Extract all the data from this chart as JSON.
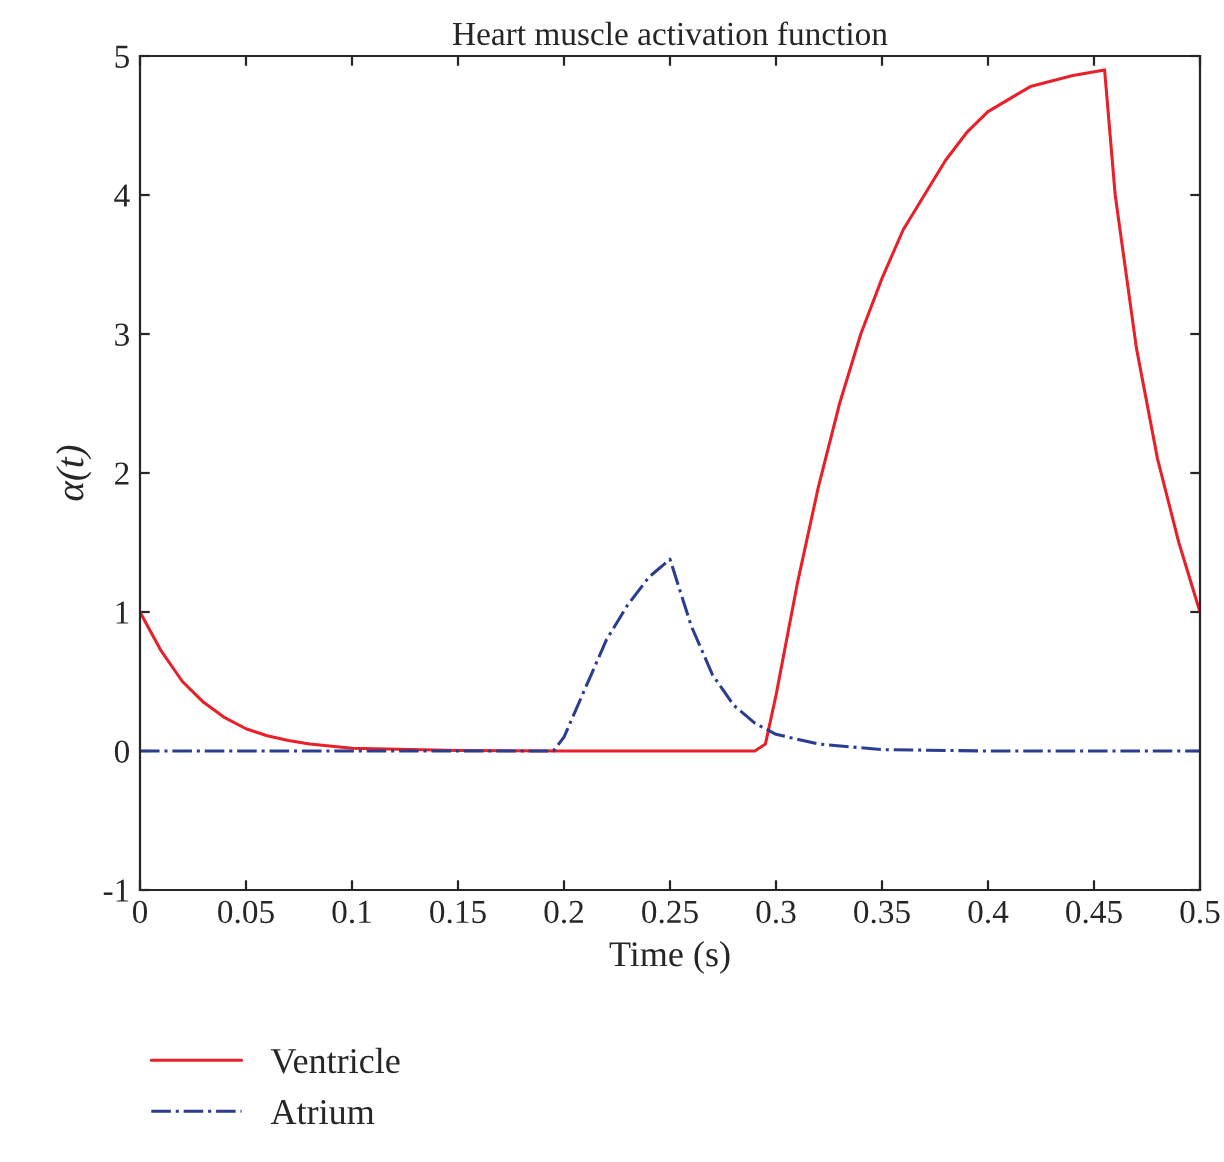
{
  "chart_data": {
    "type": "line",
    "title": "Heart muscle activation function",
    "xlabel": "Time (s)",
    "ylabel": "α(t)",
    "xlim": [
      0,
      0.5
    ],
    "xticks": [
      0,
      0.05,
      0.1,
      0.15,
      0.2,
      0.25,
      0.3,
      0.35,
      0.4,
      0.45,
      0.5
    ],
    "ylim": [
      -1,
      5
    ],
    "yticks": [
      -1,
      0,
      1,
      2,
      3,
      4,
      5
    ],
    "grid": false,
    "legend": "bottom left",
    "marker": "none",
    "series": [
      {
        "name": "Ventricle",
        "color": "#e8202a",
        "line_style": "solid",
        "x": [
          0,
          0.01,
          0.02,
          0.03,
          0.04,
          0.05,
          0.06,
          0.07,
          0.08,
          0.1,
          0.15,
          0.2,
          0.29,
          0.295,
          0.3,
          0.31,
          0.32,
          0.33,
          0.34,
          0.35,
          0.36,
          0.37,
          0.38,
          0.39,
          0.4,
          0.42,
          0.44,
          0.455,
          0.46,
          0.47,
          0.48,
          0.49,
          0.5
        ],
        "values": [
          1.0,
          0.72,
          0.5,
          0.35,
          0.24,
          0.16,
          0.11,
          0.075,
          0.05,
          0.02,
          0.003,
          0,
          0,
          0.05,
          0.4,
          1.2,
          1.9,
          2.5,
          3.0,
          3.4,
          3.75,
          4.0,
          4.25,
          4.45,
          4.6,
          4.78,
          4.86,
          4.9,
          4.0,
          2.9,
          2.1,
          1.5,
          1.0
        ]
      },
      {
        "name": "Atrium",
        "color": "#2a3d8f",
        "line_style": "dashdot",
        "x": [
          0,
          0.195,
          0.2,
          0.21,
          0.22,
          0.23,
          0.24,
          0.25,
          0.26,
          0.27,
          0.28,
          0.29,
          0.3,
          0.32,
          0.35,
          0.4,
          0.5
        ],
        "values": [
          0,
          0,
          0.1,
          0.45,
          0.8,
          1.05,
          1.25,
          1.38,
          0.9,
          0.55,
          0.33,
          0.2,
          0.12,
          0.05,
          0.01,
          0,
          0
        ]
      }
    ]
  }
}
